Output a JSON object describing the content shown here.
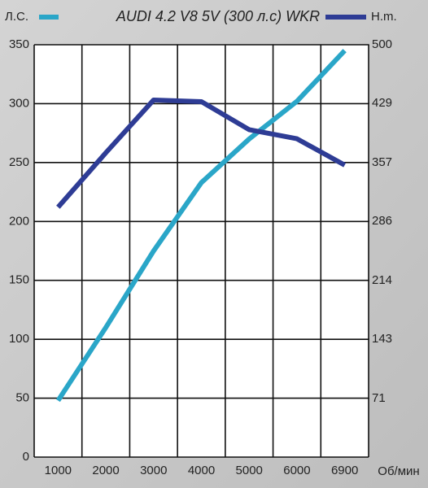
{
  "chart_data": {
    "type": "line",
    "title": "AUDI 4.2 V8 5V (300 л.с) WKR",
    "x_label": "Об/мин",
    "categories": [
      "1000",
      "2000",
      "3000",
      "4000",
      "5000",
      "6000",
      "6900"
    ],
    "series": [
      {
        "name": "Л.С.",
        "color": "#2aa6c8",
        "values": [
          48,
          110,
          175,
          233,
          270,
          302,
          345
        ]
      },
      {
        "name": "Н.m.",
        "color": "#2e3c95",
        "axis": "y2",
        "values": [
          303,
          369,
          433,
          431,
          397,
          386,
          354
        ]
      }
    ],
    "ylim": [
      0,
      350
    ],
    "yticks": [
      0,
      50,
      100,
      150,
      200,
      250,
      300,
      350
    ],
    "y2lim": [
      0,
      500
    ],
    "y2ticks": [
      71,
      143,
      214,
      286,
      357,
      429,
      500
    ],
    "grid": true
  }
}
